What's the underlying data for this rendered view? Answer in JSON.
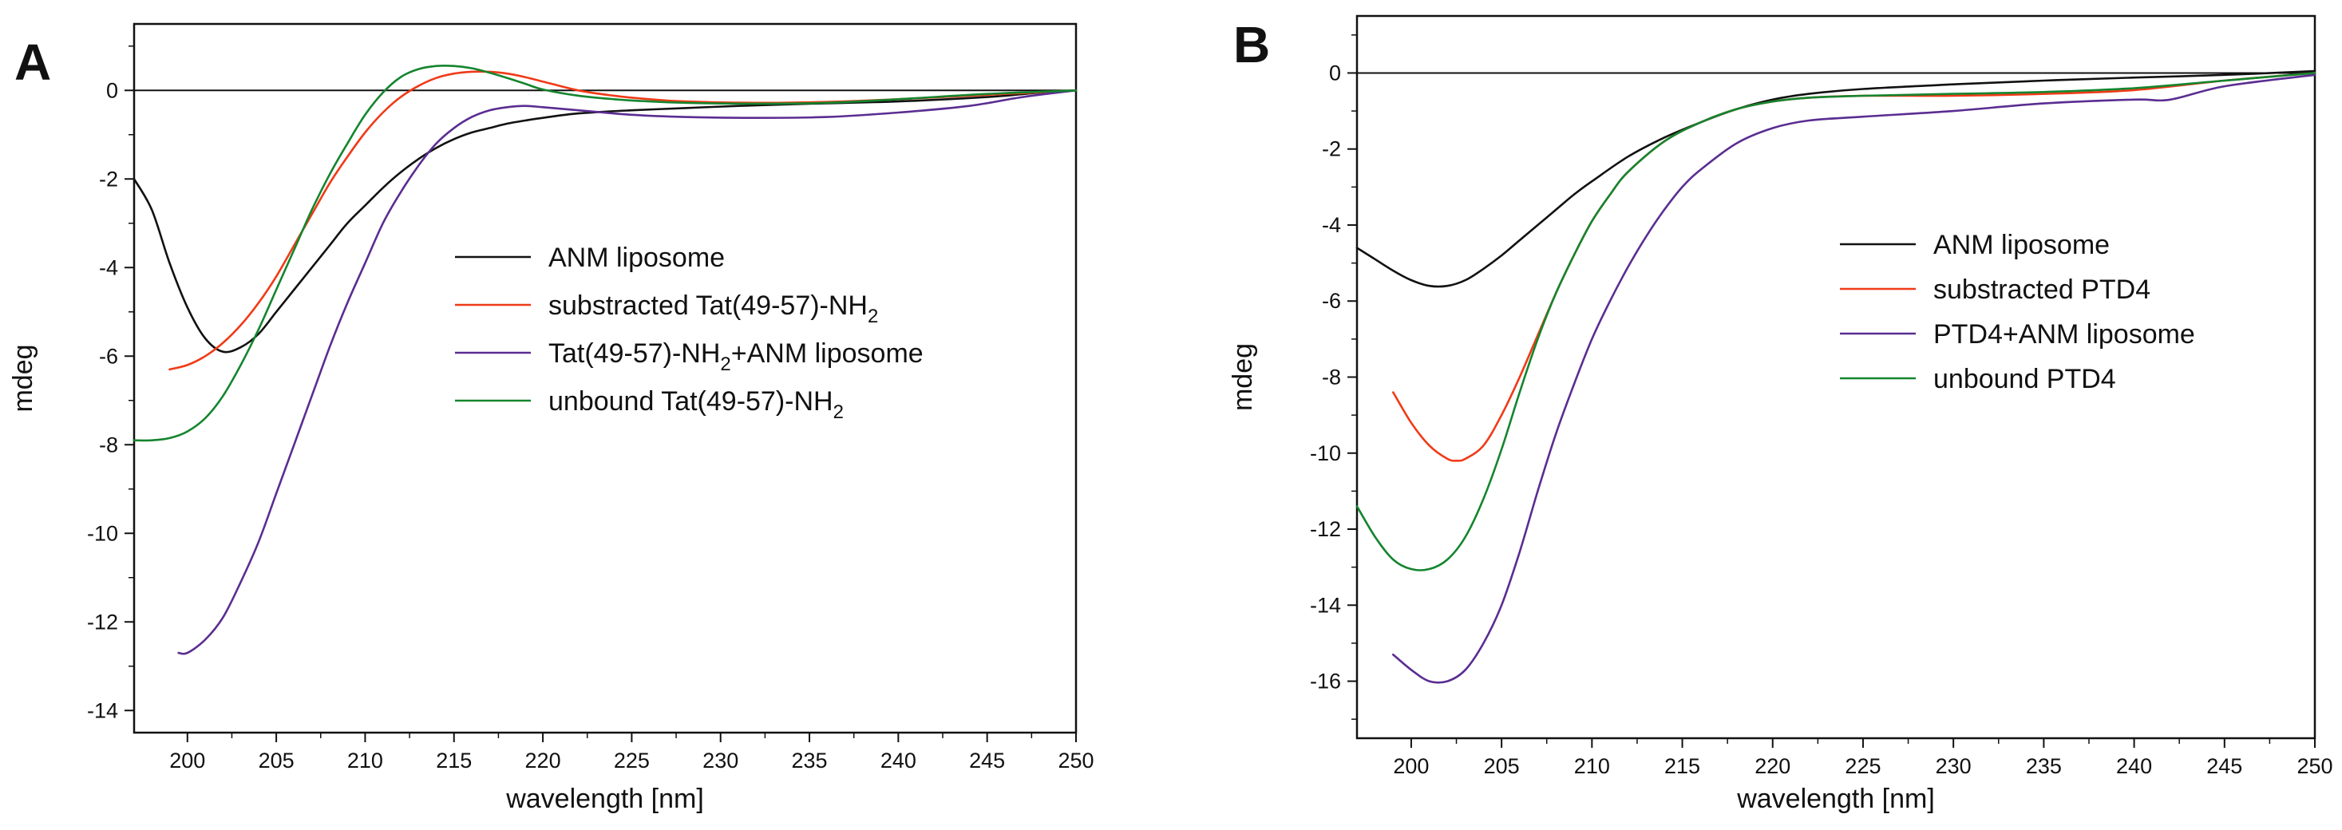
{
  "chart_data": [
    {
      "panel": "A",
      "type": "line",
      "xlabel": "wavelength [nm]",
      "ylabel": "mdeg",
      "xlim": [
        197,
        250
      ],
      "ylim": [
        -14.5,
        1.5
      ],
      "xticks": [
        200,
        205,
        210,
        215,
        220,
        225,
        230,
        235,
        240,
        245,
        250
      ],
      "yticks": [
        0,
        -2,
        -4,
        -6,
        -8,
        -10,
        -12,
        -14
      ],
      "zero_line": true,
      "legend_position": "center-right",
      "series": [
        {
          "name": "ANM liposome",
          "label_main": "ANM liposome",
          "label_sub": "",
          "label_tail": "",
          "color": "#111111",
          "x": [
            197,
            198,
            199,
            200,
            201,
            202,
            203,
            204,
            205,
            206,
            207,
            208,
            209,
            210,
            211,
            212,
            213,
            214,
            215,
            216,
            217,
            218,
            219,
            220,
            222,
            225,
            228,
            231,
            235,
            240,
            245,
            248,
            250
          ],
          "y": [
            -2.0,
            -2.7,
            -3.9,
            -4.9,
            -5.6,
            -5.9,
            -5.8,
            -5.5,
            -5.0,
            -4.5,
            -4.0,
            -3.5,
            -3.0,
            -2.6,
            -2.2,
            -1.85,
            -1.55,
            -1.3,
            -1.1,
            -0.95,
            -0.85,
            -0.75,
            -0.68,
            -0.62,
            -0.52,
            -0.45,
            -0.4,
            -0.35,
            -0.3,
            -0.25,
            -0.15,
            -0.05,
            0.0
          ]
        },
        {
          "name": "substracted Tat(49-57)-NH2",
          "label_main": "substracted Tat(49-57)-NH",
          "label_sub": "2",
          "label_tail": "",
          "color": "#f03a17",
          "x": [
            199,
            200,
            201,
            202,
            203,
            204,
            205,
            206,
            207,
            208,
            209,
            210,
            211,
            212,
            213,
            214,
            215,
            216,
            217,
            218,
            219,
            220,
            222,
            224,
            226,
            228,
            232,
            236,
            240,
            245,
            250
          ],
          "y": [
            -6.3,
            -6.2,
            -6.0,
            -5.7,
            -5.3,
            -4.8,
            -4.2,
            -3.5,
            -2.8,
            -2.1,
            -1.5,
            -0.95,
            -0.5,
            -0.15,
            0.1,
            0.28,
            0.38,
            0.42,
            0.42,
            0.38,
            0.3,
            0.2,
            0.0,
            -0.12,
            -0.2,
            -0.25,
            -0.28,
            -0.26,
            -0.2,
            -0.1,
            0.0
          ]
        },
        {
          "name": "Tat(49-57)-NH2+ANM liposome",
          "label_main": "Tat(49-57)-NH",
          "label_sub": "2",
          "label_tail": "+ANM liposome",
          "color": "#5a2d91",
          "x": [
            199.5,
            200,
            201,
            202,
            203,
            204,
            205,
            206,
            207,
            208,
            209,
            210,
            211,
            212,
            213,
            214,
            215,
            216,
            217,
            218,
            219,
            220,
            222,
            225,
            228,
            232,
            236,
            240,
            244,
            247,
            250
          ],
          "y": [
            -12.7,
            -12.7,
            -12.4,
            -11.9,
            -11.1,
            -10.2,
            -9.1,
            -8.0,
            -6.9,
            -5.8,
            -4.8,
            -3.9,
            -3.0,
            -2.3,
            -1.7,
            -1.2,
            -0.85,
            -0.6,
            -0.45,
            -0.38,
            -0.35,
            -0.38,
            -0.45,
            -0.55,
            -0.6,
            -0.62,
            -0.6,
            -0.5,
            -0.35,
            -0.15,
            0.0
          ]
        },
        {
          "name": "unbound Tat(49-57)-NH2",
          "label_main": "unbound Tat(49-57)-NH",
          "label_sub": "2",
          "label_tail": "",
          "color": "#14852e",
          "x": [
            197,
            198,
            199,
            200,
            201,
            202,
            203,
            204,
            205,
            206,
            207,
            208,
            209,
            210,
            211,
            212,
            213,
            214,
            215,
            216,
            217,
            218,
            219,
            220,
            222,
            224,
            226,
            228,
            232,
            236,
            240,
            245,
            250
          ],
          "y": [
            -7.9,
            -7.9,
            -7.85,
            -7.7,
            -7.4,
            -6.9,
            -6.2,
            -5.4,
            -4.5,
            -3.6,
            -2.7,
            -1.9,
            -1.2,
            -0.55,
            -0.05,
            0.3,
            0.48,
            0.55,
            0.55,
            0.5,
            0.4,
            0.28,
            0.15,
            0.02,
            -0.12,
            -0.2,
            -0.25,
            -0.28,
            -0.3,
            -0.28,
            -0.2,
            -0.08,
            0.0
          ]
        }
      ]
    },
    {
      "panel": "B",
      "type": "line",
      "xlabel": "wavelength [nm]",
      "ylabel": "mdeg",
      "xlim": [
        197,
        250
      ],
      "ylim": [
        -17.5,
        1.5
      ],
      "xticks": [
        200,
        205,
        210,
        215,
        220,
        225,
        230,
        235,
        240,
        245,
        250
      ],
      "yticks": [
        0,
        -2,
        -4,
        -6,
        -8,
        -10,
        -12,
        -14,
        -16
      ],
      "zero_line": true,
      "legend_position": "center-right",
      "series": [
        {
          "name": "ANM liposome",
          "label_main": "ANM liposome",
          "label_sub": "",
          "label_tail": "",
          "color": "#111111",
          "x": [
            197,
            198,
            199,
            200,
            201,
            202,
            203,
            204,
            205,
            206,
            207,
            208,
            209,
            210,
            212,
            214,
            216,
            218,
            220,
            222,
            225,
            230,
            235,
            240,
            245,
            250
          ],
          "y": [
            -4.6,
            -4.9,
            -5.2,
            -5.45,
            -5.6,
            -5.6,
            -5.45,
            -5.15,
            -4.8,
            -4.4,
            -4.0,
            -3.6,
            -3.2,
            -2.85,
            -2.2,
            -1.7,
            -1.3,
            -0.95,
            -0.7,
            -0.55,
            -0.42,
            -0.3,
            -0.2,
            -0.12,
            -0.05,
            0.05
          ]
        },
        {
          "name": "substracted PTD4",
          "label_main": "substracted PTD4",
          "label_sub": "",
          "label_tail": "",
          "color": "#f03a17",
          "x": [
            199,
            200,
            201,
            202,
            202.5,
            203,
            204,
            205,
            206,
            207,
            208,
            209,
            210,
            211,
            212,
            214,
            216,
            218,
            220,
            222,
            225,
            230,
            235,
            240,
            245,
            250
          ],
          "y": [
            -8.4,
            -9.2,
            -9.8,
            -10.15,
            -10.2,
            -10.15,
            -9.8,
            -9.0,
            -8.0,
            -6.9,
            -5.8,
            -4.8,
            -3.9,
            -3.2,
            -2.6,
            -1.8,
            -1.3,
            -0.95,
            -0.75,
            -0.65,
            -0.6,
            -0.6,
            -0.55,
            -0.45,
            -0.2,
            0.0
          ]
        },
        {
          "name": "PTD4+ANM liposome",
          "label_main": "PTD4+ANM liposome",
          "label_sub": "",
          "label_tail": "",
          "color": "#5a2d91",
          "x": [
            199,
            200,
            201,
            202,
            203,
            204,
            205,
            206,
            207,
            208,
            209,
            210,
            211,
            212,
            213,
            214,
            215,
            216,
            218,
            220,
            222,
            225,
            230,
            235,
            240,
            242,
            245,
            250
          ],
          "y": [
            -15.3,
            -15.7,
            -16.0,
            -16.0,
            -15.7,
            -15.0,
            -14.0,
            -12.6,
            -11.0,
            -9.5,
            -8.2,
            -7.0,
            -6.0,
            -5.1,
            -4.3,
            -3.6,
            -3.0,
            -2.55,
            -1.85,
            -1.45,
            -1.25,
            -1.15,
            -1.0,
            -0.8,
            -0.7,
            -0.7,
            -0.35,
            -0.05
          ]
        },
        {
          "name": "unbound PTD4",
          "label_main": " unbound PTD4",
          "label_sub": "",
          "label_tail": "",
          "color": "#14852e",
          "x": [
            197,
            198,
            199,
            200,
            201,
            202,
            203,
            204,
            205,
            206,
            207,
            208,
            209,
            210,
            211,
            212,
            214,
            216,
            218,
            220,
            222,
            225,
            230,
            235,
            240,
            245,
            250
          ],
          "y": [
            -11.4,
            -12.2,
            -12.8,
            -13.05,
            -13.05,
            -12.8,
            -12.2,
            -11.2,
            -9.9,
            -8.4,
            -7.0,
            -5.8,
            -4.8,
            -3.9,
            -3.2,
            -2.6,
            -1.8,
            -1.3,
            -0.95,
            -0.75,
            -0.65,
            -0.6,
            -0.55,
            -0.5,
            -0.4,
            -0.2,
            0.0
          ]
        }
      ]
    }
  ]
}
